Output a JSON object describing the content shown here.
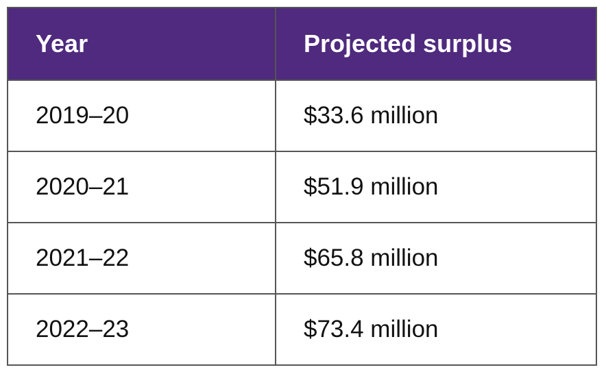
{
  "table": {
    "headers": [
      "Year",
      "Projected surplus"
    ],
    "rows": [
      [
        "2019–20",
        "$33.6 million"
      ],
      [
        "2020–21",
        "$51.9 million"
      ],
      [
        "2021–22",
        "$65.8 million"
      ],
      [
        "2022–23",
        "$73.4 million"
      ]
    ]
  },
  "colors": {
    "header_bg": "#4f2a7e",
    "header_text": "#ffffff",
    "border": "#555555"
  }
}
